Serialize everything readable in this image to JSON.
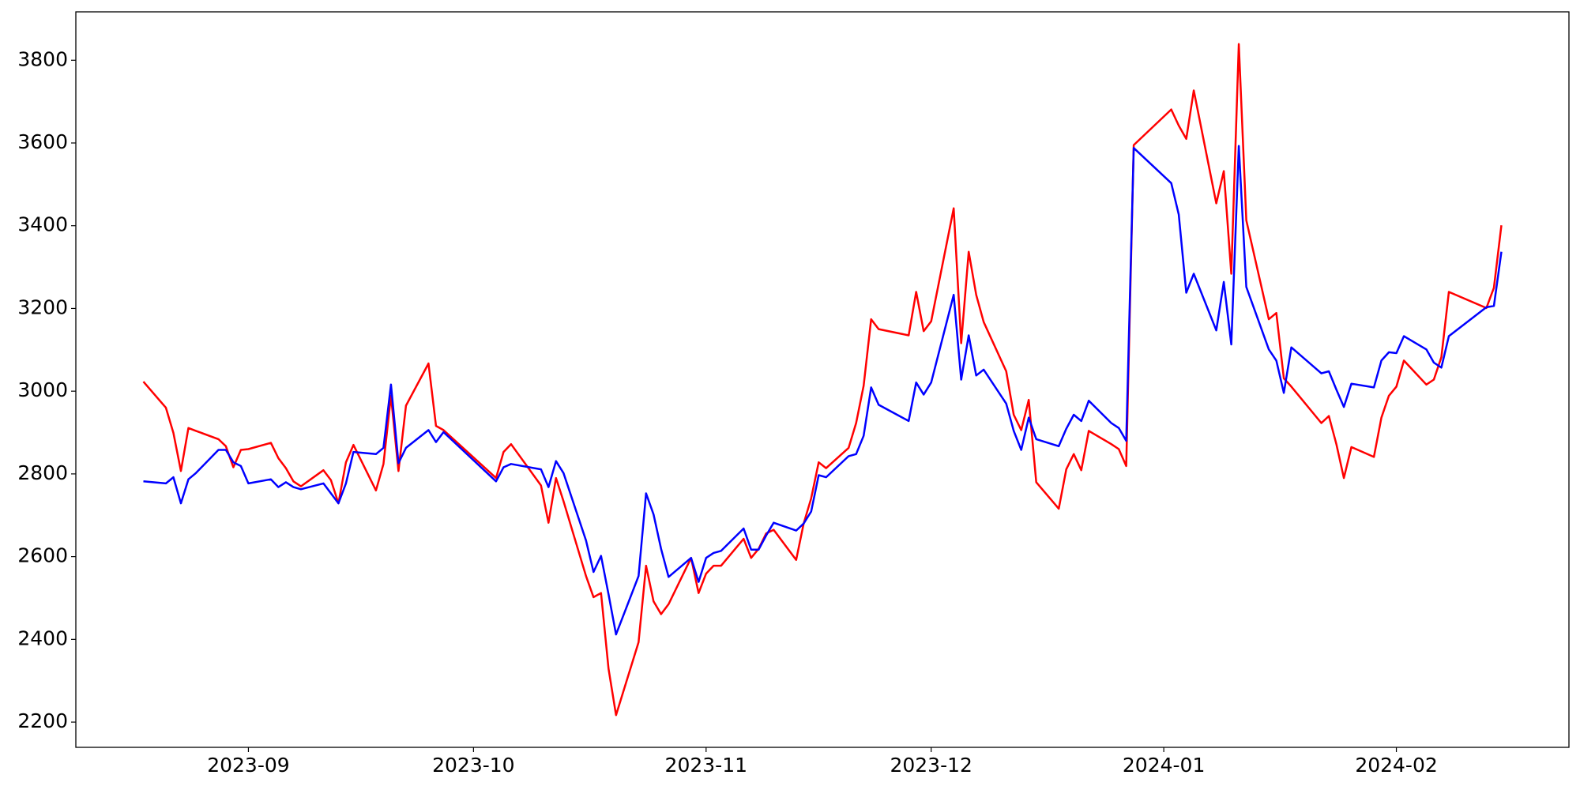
{
  "chart_data": {
    "type": "line",
    "x": [
      "2023-08-18",
      "2023-08-21",
      "2023-08-22",
      "2023-08-23",
      "2023-08-24",
      "2023-08-25",
      "2023-08-28",
      "2023-08-29",
      "2023-08-30",
      "2023-08-31",
      "2023-09-01",
      "2023-09-04",
      "2023-09-05",
      "2023-09-06",
      "2023-09-07",
      "2023-09-08",
      "2023-09-11",
      "2023-09-12",
      "2023-09-13",
      "2023-09-14",
      "2023-09-15",
      "2023-09-18",
      "2023-09-19",
      "2023-09-20",
      "2023-09-21",
      "2023-09-22",
      "2023-09-25",
      "2023-09-26",
      "2023-09-27",
      "2023-10-04",
      "2023-10-05",
      "2023-10-06",
      "2023-10-10",
      "2023-10-11",
      "2023-10-12",
      "2023-10-13",
      "2023-10-16",
      "2023-10-17",
      "2023-10-18",
      "2023-10-19",
      "2023-10-20",
      "2023-10-23",
      "2023-10-24",
      "2023-10-25",
      "2023-10-26",
      "2023-10-27",
      "2023-10-30",
      "2023-10-31",
      "2023-11-01",
      "2023-11-02",
      "2023-11-03",
      "2023-11-06",
      "2023-11-07",
      "2023-11-08",
      "2023-11-09",
      "2023-11-10",
      "2023-11-13",
      "2023-11-14",
      "2023-11-15",
      "2023-11-16",
      "2023-11-17",
      "2023-11-20",
      "2023-11-21",
      "2023-11-22",
      "2023-11-23",
      "2023-11-24",
      "2023-11-28",
      "2023-11-29",
      "2023-11-30",
      "2023-12-01",
      "2023-12-04",
      "2023-12-05",
      "2023-12-06",
      "2023-12-07",
      "2023-12-08",
      "2023-12-11",
      "2023-12-12",
      "2023-12-13",
      "2023-12-14",
      "2023-12-15",
      "2023-12-18",
      "2023-12-19",
      "2023-12-20",
      "2023-12-21",
      "2023-12-22",
      "2023-12-25",
      "2023-12-26",
      "2023-12-27",
      "2023-12-28",
      "2024-01-02",
      "2024-01-03",
      "2024-01-04",
      "2024-01-05",
      "2024-01-08",
      "2024-01-09",
      "2024-01-10",
      "2024-01-11",
      "2024-01-12",
      "2024-01-15",
      "2024-01-16",
      "2024-01-17",
      "2024-01-18",
      "2024-01-22",
      "2024-01-23",
      "2024-01-24",
      "2024-01-25",
      "2024-01-26",
      "2024-01-29",
      "2024-01-30",
      "2024-01-31",
      "2024-02-01",
      "2024-02-02",
      "2024-02-05",
      "2024-02-06",
      "2024-02-07",
      "2024-02-08",
      "2024-02-13",
      "2024-02-14",
      "2024-02-15"
    ],
    "series": [
      {
        "color": "#ff0000",
        "values": [
          3023,
          2960,
          2899,
          2807,
          2911,
          2904,
          2884,
          2867,
          2816,
          2858,
          2860,
          2875,
          2838,
          2814,
          2782,
          2770,
          2809,
          2785,
          2729,
          2828,
          2870,
          2760,
          2824,
          2989,
          2807,
          2965,
          3067,
          2916,
          2906,
          2790,
          2853,
          2872,
          2772,
          2682,
          2790,
          2734,
          2553,
          2502,
          2512,
          2329,
          2217,
          2393,
          2578,
          2492,
          2461,
          2485,
          2597,
          2512,
          2559,
          2578,
          2578,
          2643,
          2597,
          2619,
          2656,
          2665,
          2592,
          2680,
          2741,
          2828,
          2814,
          2863,
          2923,
          3013,
          3174,
          3150,
          3135,
          3240,
          3145,
          3169,
          3442,
          3116,
          3337,
          3233,
          3167,
          3048,
          2943,
          2906,
          2979,
          2780,
          2716,
          2811,
          2848,
          2809,
          2904,
          2872,
          2860,
          2819,
          3595,
          3681,
          3642,
          3610,
          3727,
          3454,
          3532,
          3284,
          3839,
          3413,
          3174,
          3189,
          3031,
          3011,
          2923,
          2940,
          2872,
          2790,
          2865,
          2841,
          2936,
          2989,
          3011,
          3074,
          3016,
          3028,
          3082,
          3240,
          3201,
          3250,
          3401
        ]
      },
      {
        "color": "#0000ff",
        "values": [
          2782,
          2777,
          2792,
          2729,
          2787,
          2802,
          2858,
          2858,
          2828,
          2819,
          2777,
          2787,
          2768,
          2780,
          2768,
          2763,
          2777,
          2753,
          2729,
          2777,
          2853,
          2848,
          2863,
          3016,
          2826,
          2863,
          2906,
          2877,
          2901,
          2782,
          2816,
          2824,
          2811,
          2768,
          2831,
          2802,
          2639,
          2563,
          2602,
          2509,
          2412,
          2553,
          2753,
          2702,
          2619,
          2551,
          2597,
          2539,
          2597,
          2609,
          2614,
          2668,
          2617,
          2617,
          2651,
          2682,
          2663,
          2680,
          2709,
          2797,
          2792,
          2843,
          2848,
          2892,
          3009,
          2967,
          2928,
          3021,
          2992,
          3021,
          3233,
          3028,
          3135,
          3038,
          3052,
          2970,
          2904,
          2858,
          2936,
          2884,
          2867,
          2909,
          2943,
          2928,
          2977,
          2923,
          2911,
          2880,
          3588,
          3503,
          3427,
          3238,
          3284,
          3147,
          3264,
          3113,
          3593,
          3252,
          3101,
          3074,
          2996,
          3106,
          3043,
          3048,
          3004,
          2962,
          3018,
          3009,
          3074,
          3094,
          3092,
          3133,
          3101,
          3069,
          3057,
          3133,
          3203,
          3206,
          3337
        ]
      }
    ],
    "xlim": [
      "2023-08-09",
      "2024-02-24"
    ],
    "xticks": [
      {
        "value": "2023-09-01",
        "label": "2023-09"
      },
      {
        "value": "2023-10-01",
        "label": "2023-10"
      },
      {
        "value": "2023-11-01",
        "label": "2023-11"
      },
      {
        "value": "2023-12-01",
        "label": "2023-12"
      },
      {
        "value": "2024-01-01",
        "label": "2024-01"
      },
      {
        "value": "2024-02-01",
        "label": "2024-02"
      }
    ],
    "ylim": [
      2139,
      3917
    ],
    "yticks": [
      2200,
      2400,
      2600,
      2800,
      3000,
      3200,
      3400,
      3600,
      3800
    ]
  }
}
